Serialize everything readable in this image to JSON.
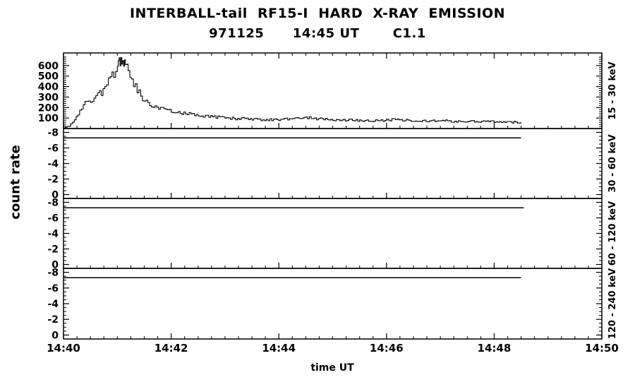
{
  "display": {
    "title_line1": "INTERBALL-tail  RF15-I  HARD  X-RAY  EMISSION",
    "title_line2": "971125      14:45 UT       C1.1",
    "ylabel": "count rate",
    "xlabel": "time UT"
  },
  "colors": {
    "foreground": "#000000",
    "background": "#ffffff"
  },
  "chart_data": {
    "type": "line",
    "title": "INTERBALL-tail RF15-I HARD X-RAY EMISSION",
    "subtitle": "971125 14:45 UT C1.1",
    "xlabel": "time UT",
    "ylabel": "count rate",
    "x_axis": {
      "units": "minutes after 14:40 UT",
      "range": [
        0,
        10
      ],
      "tick_values": [
        0,
        2,
        4,
        6,
        8,
        10
      ],
      "tick_labels": [
        "14:40",
        "14:42",
        "14:44",
        "14:46",
        "14:48",
        "14:50"
      ],
      "minor_step": 0.25
    },
    "legend": "none",
    "grid": false,
    "panels": [
      {
        "name": "15 - 30 keV",
        "ylim": [
          0,
          720
        ],
        "ytick_values": [
          100,
          200,
          300,
          400,
          500,
          600
        ],
        "ytick_labels": [
          "100",
          "200",
          "300",
          "400",
          "500",
          "600"
        ],
        "ytick_minor_step": 20,
        "series": {
          "name": "count rate 15 - 30 keV",
          "points": [
            [
              0,
              8
            ],
            [
              0.1,
              20
            ],
            [
              0.2,
              95
            ],
            [
              0.3,
              170
            ],
            [
              0.4,
              235
            ],
            [
              0.5,
              265
            ],
            [
              0.6,
              300
            ],
            [
              0.7,
              345
            ],
            [
              0.8,
              430
            ],
            [
              0.9,
              505
            ],
            [
              1,
              590
            ],
            [
              1.05,
              640
            ],
            [
              1.1,
              655
            ],
            [
              1.15,
              620
            ],
            [
              1.2,
              560
            ],
            [
              1.3,
              430
            ],
            [
              1.4,
              345
            ],
            [
              1.5,
              265
            ],
            [
              1.6,
              220
            ],
            [
              1.7,
              200
            ],
            [
              1.8,
              190
            ],
            [
              1.9,
              175
            ],
            [
              2,
              165
            ],
            [
              2.1,
              155
            ],
            [
              2.2,
              150
            ],
            [
              2.3,
              142
            ],
            [
              2.4,
              135
            ],
            [
              2.5,
              128
            ],
            [
              2.6,
              122
            ],
            [
              2.7,
              118
            ],
            [
              2.8,
              112
            ],
            [
              2.9,
              108
            ],
            [
              3,
              102
            ],
            [
              3.1,
              98
            ],
            [
              3.2,
              95
            ],
            [
              3.3,
              92
            ],
            [
              3.4,
              90
            ],
            [
              3.5,
              88
            ],
            [
              3.6,
              86
            ],
            [
              3.7,
              84
            ],
            [
              3.8,
              82
            ],
            [
              3.9,
              84
            ],
            [
              4,
              86
            ],
            [
              4.1,
              90
            ],
            [
              4.2,
              94
            ],
            [
              4.3,
              98
            ],
            [
              4.4,
              103
            ],
            [
              4.5,
              106
            ],
            [
              4.6,
              100
            ],
            [
              4.7,
              94
            ],
            [
              4.8,
              90
            ],
            [
              4.9,
              87
            ],
            [
              5,
              84
            ],
            [
              5.1,
              82
            ],
            [
              5.2,
              80
            ],
            [
              5.3,
              79
            ],
            [
              5.4,
              78
            ],
            [
              5.5,
              77
            ],
            [
              5.6,
              76
            ],
            [
              5.7,
              76
            ],
            [
              5.8,
              75
            ],
            [
              5.9,
              78
            ],
            [
              6,
              82
            ],
            [
              6.1,
              85
            ],
            [
              6.2,
              83
            ],
            [
              6.3,
              80
            ],
            [
              6.4,
              78
            ],
            [
              6.5,
              76
            ],
            [
              6.6,
              74
            ],
            [
              6.7,
              73
            ],
            [
              6.8,
              72
            ],
            [
              6.9,
              73
            ],
            [
              7,
              74
            ],
            [
              7.1,
              72
            ],
            [
              7.2,
              70
            ],
            [
              7.3,
              69
            ],
            [
              7.4,
              68
            ],
            [
              7.5,
              67
            ],
            [
              7.6,
              66
            ],
            [
              7.7,
              67
            ],
            [
              7.8,
              65
            ],
            [
              7.9,
              66
            ],
            [
              8,
              67
            ],
            [
              8.1,
              65
            ],
            [
              8.2,
              64
            ],
            [
              8.3,
              63
            ],
            [
              8.4,
              62
            ],
            [
              8.5,
              60
            ]
          ]
        }
      },
      {
        "name": "30 - 60 keV",
        "ylim": [
          0.5,
          -8.5
        ],
        "ytick_values": [
          0,
          -2,
          -4,
          -6,
          -8
        ],
        "ytick_labels": [
          "0",
          "-2",
          "-4",
          "-6",
          "-8"
        ],
        "ytick_minor_step": 0.5,
        "flat_line": {
          "value": -7.3,
          "t_start": 0,
          "t_end": 8.5
        }
      },
      {
        "name": "60 - 120 keV",
        "ylim": [
          0.5,
          -8.5
        ],
        "ytick_values": [
          0,
          -2,
          -4,
          -6,
          -8
        ],
        "ytick_labels": [
          "0",
          "-2",
          "-4",
          "-6",
          "-8"
        ],
        "ytick_minor_step": 0.5,
        "flat_line": {
          "value": -7.3,
          "t_start": 0,
          "t_end": 8.55
        }
      },
      {
        "name": "120 - 240 keV",
        "ylim": [
          0.5,
          -8.5
        ],
        "ytick_values": [
          0,
          -2,
          -4,
          -6,
          -8
        ],
        "ytick_labels": [
          "0",
          "-2",
          "-4",
          "-6",
          "-8"
        ],
        "ytick_minor_step": 0.5,
        "flat_line": {
          "value": -7.3,
          "t_start": 0,
          "t_end": 8.5
        }
      }
    ]
  }
}
